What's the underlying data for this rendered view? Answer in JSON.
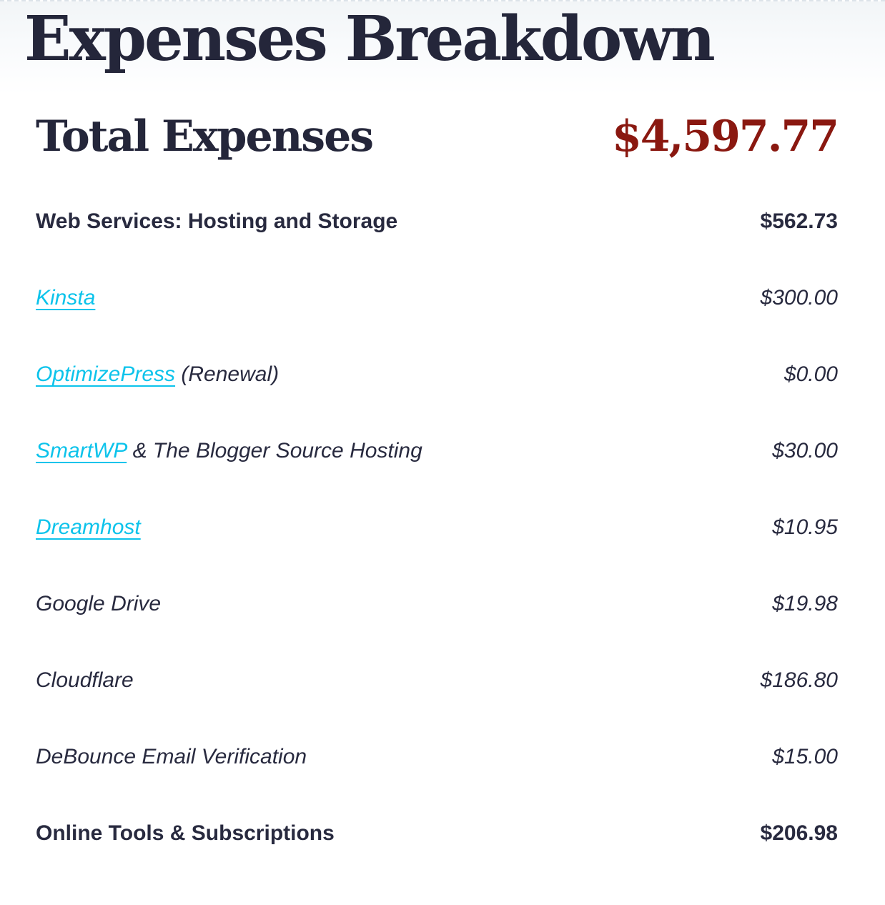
{
  "title": "Expenses Breakdown",
  "total": {
    "label": "Total Expenses",
    "value": "$4,597.77"
  },
  "colors": {
    "navy": "#282a3f",
    "red": "#8a1810",
    "link_cyan": "#0cc3eb",
    "header_bg": "#f2f5f7"
  },
  "rows": [
    {
      "type": "category",
      "label": "Web Services: Hosting and Storage",
      "value": "$562.73"
    },
    {
      "type": "item",
      "link": "Kinsta",
      "suffix": "",
      "value": "$300.00"
    },
    {
      "type": "item",
      "link": "OptimizePress",
      "suffix": " (Renewal)",
      "value": "$0.00"
    },
    {
      "type": "item",
      "link": "SmartWP",
      "suffix": " & The Blogger Source Hosting",
      "value": "$30.00"
    },
    {
      "type": "item",
      "link": "Dreamhost",
      "suffix": "",
      "value": "$10.95"
    },
    {
      "type": "item",
      "label": "Google Drive",
      "value": "$19.98"
    },
    {
      "type": "item",
      "label": "Cloudflare",
      "value": "$186.80"
    },
    {
      "type": "item",
      "label": "DeBounce Email Verification",
      "value": "$15.00"
    },
    {
      "type": "category",
      "label": "Online Tools & Subscriptions",
      "value": "$206.98"
    }
  ]
}
